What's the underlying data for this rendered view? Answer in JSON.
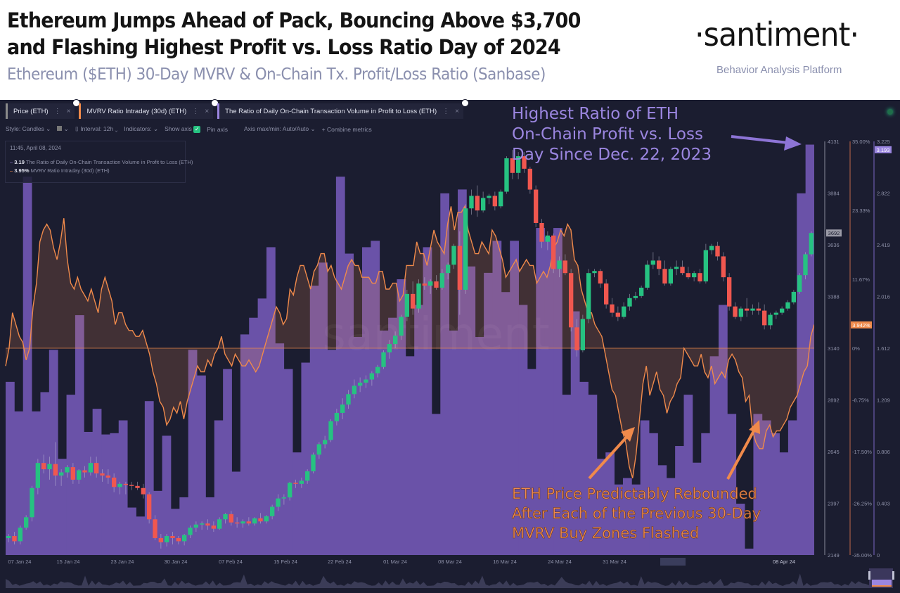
{
  "header": {
    "title_line1": "Ethereum Jumps Ahead of Pack, Bouncing Above $3,700",
    "title_line2": "and Flashing Highest Profit vs. Loss Ratio Day of 2024",
    "subtitle": "Ethereum ($ETH) 30-Day MVRV & On-Chain Tx. Profit/Loss Ratio (Sanbase)",
    "logo": "·santiment·",
    "logo_tagline": "Behavior Analysis Platform"
  },
  "tabs": [
    {
      "label": "Price (ETH)",
      "color": "#8a8a8a"
    },
    {
      "label": "MVRV Ratio Intraday (30d) (ETH)",
      "color": "#f08a4b"
    },
    {
      "label": "The Ratio of Daily On-Chain Transaction Volume in Profit to Loss (ETH)",
      "color": "#9b86e0"
    }
  ],
  "toolbar": {
    "style": "Style: Candles",
    "interval": "Interval: 12h",
    "indicators": "Indicators:",
    "show_axis": "Show axis",
    "pin_axis": "Pin axis",
    "axis_maxmin": "Axis max/min: Auto/Auto",
    "combine": "+ Combine metrics"
  },
  "legend": {
    "timestamp": "11:45, April 08, 2024",
    "rows": [
      {
        "value": "3.19",
        "label": "The Ratio of Daily On-Chain Transaction Volume in Profit to Loss (ETH)",
        "color": "#9b86e0"
      },
      {
        "value": "3.95%",
        "label": "MVRV Ratio Intraday (30d) (ETH)",
        "color": "#f08a4b"
      }
    ]
  },
  "annotations": {
    "top": [
      "Highest Ratio of ETH",
      "On-Chain Profit vs. Loss",
      "Day Since Dec. 22, 2023"
    ],
    "bottom": [
      "ETH Price Predictably Rebounded",
      "After Each of the Previous 30-Day",
      "MVRV Buy Zones Flashed"
    ]
  },
  "watermark": "santiment",
  "chart_data": {
    "type": "bar+line+candlestick",
    "title": "Ethereum ($ETH) 30-Day MVRV & On-Chain Tx. Profit/Loss Ratio",
    "x_ticks": [
      "07 Jan 24",
      "15 Jan 24",
      "23 Jan 24",
      "30 Jan 24",
      "07 Feb 24",
      "15 Feb 24",
      "22 Feb 24",
      "01 Mar 24",
      "08 Mar 24",
      "16 Mar 24",
      "24 Mar 24",
      "31 Mar 24",
      "08 Apr 24"
    ],
    "x_range": [
      "2024-01-06",
      "2024-04-08"
    ],
    "axes": {
      "price": {
        "label": "Price (ETH)",
        "ticks": [
          4131,
          3884,
          3636,
          3388,
          3140,
          2892,
          2645,
          2397,
          2149
        ],
        "range": [
          2149,
          4131
        ],
        "current_label": "3692"
      },
      "mvrv": {
        "label": "MVRV Ratio Intraday (30d)",
        "ticks": [
          "35.00%",
          "23.33%",
          "11.67%",
          "0%",
          "-8.75%",
          "-17.50%",
          "-26.25%",
          "-35.00%"
        ],
        "range": [
          -35,
          35
        ],
        "current_label": "3.942%"
      },
      "ratio": {
        "label": "Profit/Loss Ratio",
        "ticks": [
          "3.225",
          "2.822",
          "2.419",
          "2.016",
          "1.612",
          "1.209",
          "0.806",
          "0.403",
          "0"
        ],
        "range": [
          0,
          3.225
        ],
        "current_label": "3.193"
      }
    },
    "ratio_series": {
      "name": "The Ratio of Daily On-Chain Transaction Volume in Profit to Loss (ETH)",
      "color": "#6a52a8",
      "values": [
        1.35,
        1.12,
        2.95,
        1.12,
        1.27,
        1.6,
        0.75,
        1.25,
        1.87,
        0.96,
        1.14,
        0.94,
        0.95,
        1.05,
        0.37,
        0.3,
        1.2,
        0.5,
        0.93,
        0.36,
        0.45,
        1.6,
        1.4,
        0.45,
        1.05,
        1.45,
        0.65,
        1.72,
        1.85,
        2.0,
        2.4,
        1.65,
        1.45,
        0.8,
        1.5,
        2.1,
        2.28,
        1.6,
        2.95,
        2.35,
        1.7,
        2.4,
        2.45,
        1.75,
        1.85,
        2.15,
        1.55,
        1.95,
        2.4,
        1.1,
        2.82,
        1.75,
        2.85,
        2.25,
        1.7,
        2.2,
        2.45,
        2.05,
        2.45,
        1.95,
        1.45,
        2.55,
        2.48,
        2.55,
        1.25,
        1.9,
        1.35,
        1.25,
        0.75,
        0.8,
        0.55,
        0.6,
        0.55,
        1.05,
        0.95,
        0.7,
        0.6,
        0.85,
        1.25,
        0.72,
        0.95,
        1.55,
        1.95,
        1.1,
        0.4,
        0.05,
        1.1,
        1.05,
        0.95,
        0.8,
        1.05,
        2.82,
        3.2
      ]
    },
    "price_series": {
      "name": "Price (ETH)",
      "interval": "1d (approx. of 12h candles)",
      "up_color": "#26c281",
      "down_color": "#f0574f",
      "ohlc": [
        [
          2230,
          2250,
          2210,
          2240
        ],
        [
          2240,
          2260,
          2200,
          2215
        ],
        [
          2215,
          2290,
          2200,
          2280
        ],
        [
          2280,
          2340,
          2270,
          2330
        ],
        [
          2330,
          2480,
          2310,
          2470
        ],
        [
          2470,
          2610,
          2440,
          2590
        ],
        [
          2590,
          2630,
          2540,
          2560
        ],
        [
          2560,
          2620,
          2510,
          2585
        ],
        [
          2585,
          2690,
          2480,
          2530
        ],
        [
          2530,
          2560,
          2480,
          2545
        ],
        [
          2545,
          2580,
          2520,
          2570
        ],
        [
          2570,
          2590,
          2490,
          2510
        ],
        [
          2510,
          2560,
          2490,
          2555
        ],
        [
          2555,
          2575,
          2520,
          2545
        ],
        [
          2545,
          2620,
          2530,
          2590
        ],
        [
          2590,
          2620,
          2520,
          2540
        ],
        [
          2540,
          2560,
          2500,
          2530
        ],
        [
          2530,
          2560,
          2490,
          2520
        ],
        [
          2520,
          2540,
          2450,
          2475
        ],
        [
          2475,
          2500,
          2440,
          2490
        ],
        [
          2490,
          2500,
          2440,
          2485
        ],
        [
          2485,
          2500,
          2460,
          2480
        ],
        [
          2480,
          2500,
          2460,
          2470
        ],
        [
          2470,
          2490,
          2420,
          2440
        ],
        [
          2440,
          2450,
          2300,
          2320
        ],
        [
          2320,
          2340,
          2220,
          2230
        ],
        [
          2230,
          2250,
          2180,
          2210
        ],
        [
          2210,
          2250,
          2190,
          2240
        ],
        [
          2240,
          2260,
          2200,
          2230
        ],
        [
          2230,
          2240,
          2200,
          2215
        ],
        [
          2215,
          2250,
          2195,
          2245
        ],
        [
          2245,
          2290,
          2230,
          2280
        ],
        [
          2280,
          2310,
          2260,
          2295
        ],
        [
          2295,
          2310,
          2270,
          2300
        ],
        [
          2300,
          2320,
          2270,
          2290
        ],
        [
          2290,
          2310,
          2260,
          2275
        ],
        [
          2275,
          2330,
          2270,
          2320
        ],
        [
          2320,
          2350,
          2300,
          2345
        ],
        [
          2345,
          2360,
          2290,
          2305
        ],
        [
          2305,
          2330,
          2280,
          2300
        ],
        [
          2300,
          2320,
          2280,
          2310
        ],
        [
          2310,
          2330,
          2290,
          2300
        ],
        [
          2300,
          2330,
          2290,
          2325
        ],
        [
          2325,
          2350,
          2300,
          2310
        ],
        [
          2310,
          2340,
          2300,
          2335
        ],
        [
          2335,
          2390,
          2320,
          2380
        ],
        [
          2380,
          2440,
          2360,
          2420
        ],
        [
          2420,
          2440,
          2390,
          2425
        ],
        [
          2425,
          2500,
          2410,
          2495
        ],
        [
          2495,
          2510,
          2470,
          2490
        ],
        [
          2490,
          2520,
          2470,
          2505
        ],
        [
          2505,
          2560,
          2490,
          2550
        ],
        [
          2550,
          2640,
          2540,
          2630
        ],
        [
          2630,
          2690,
          2610,
          2680
        ],
        [
          2680,
          2720,
          2660,
          2700
        ],
        [
          2700,
          2800,
          2690,
          2790
        ],
        [
          2790,
          2850,
          2770,
          2830
        ],
        [
          2830,
          2900,
          2800,
          2870
        ],
        [
          2870,
          2940,
          2850,
          2920
        ],
        [
          2920,
          2990,
          2900,
          2960
        ],
        [
          2960,
          3000,
          2930,
          2975
        ],
        [
          2975,
          3010,
          2950,
          2990
        ],
        [
          2990,
          3030,
          2960,
          3020
        ],
        [
          3020,
          3060,
          3000,
          3050
        ],
        [
          3050,
          3130,
          3040,
          3120
        ],
        [
          3120,
          3180,
          3090,
          3160
        ],
        [
          3160,
          3220,
          3140,
          3200
        ],
        [
          3200,
          3300,
          3180,
          3290
        ],
        [
          3290,
          3420,
          3270,
          3400
        ],
        [
          3400,
          3460,
          3300,
          3330
        ],
        [
          3330,
          3470,
          3310,
          3450
        ],
        [
          3450,
          3480,
          3420,
          3440
        ],
        [
          3440,
          3470,
          3400,
          3460
        ],
        [
          3460,
          3490,
          3420,
          3430
        ],
        [
          3430,
          3520,
          3420,
          3500
        ],
        [
          3500,
          3550,
          3470,
          3540
        ],
        [
          3540,
          3640,
          3520,
          3630
        ],
        [
          3630,
          3700,
          3300,
          3420
        ],
        [
          3420,
          3830,
          3400,
          3810
        ],
        [
          3810,
          3900,
          3780,
          3870
        ],
        [
          3870,
          3920,
          3770,
          3800
        ],
        [
          3800,
          3890,
          3790,
          3860
        ],
        [
          3860,
          3880,
          3830,
          3870
        ],
        [
          3870,
          3890,
          3800,
          3820
        ],
        [
          3820,
          3900,
          3810,
          3890
        ],
        [
          3890,
          4060,
          3880,
          4050
        ],
        [
          4050,
          4090,
          3950,
          3980
        ],
        [
          3980,
          4080,
          3950,
          4060
        ],
        [
          4060,
          4080,
          3980,
          4000
        ],
        [
          4000,
          4010,
          3880,
          3900
        ],
        [
          3900,
          3920,
          3720,
          3740
        ],
        [
          3740,
          3760,
          3620,
          3650
        ],
        [
          3650,
          3700,
          3610,
          3680
        ],
        [
          3680,
          3690,
          3500,
          3520
        ],
        [
          3520,
          3580,
          3480,
          3560
        ],
        [
          3560,
          3590,
          3490,
          3500
        ],
        [
          3500,
          3520,
          3220,
          3240
        ],
        [
          3240,
          3280,
          3100,
          3130
        ],
        [
          3130,
          3300,
          3120,
          3280
        ],
        [
          3280,
          3520,
          3260,
          3500
        ],
        [
          3500,
          3520,
          3480,
          3510
        ],
        [
          3510,
          3520,
          3430,
          3450
        ],
        [
          3450,
          3470,
          3330,
          3350
        ],
        [
          3350,
          3380,
          3290,
          3310
        ],
        [
          3310,
          3340,
          3270,
          3290
        ],
        [
          3290,
          3360,
          3280,
          3340
        ],
        [
          3340,
          3400,
          3320,
          3380
        ],
        [
          3380,
          3410,
          3370,
          3390
        ],
        [
          3390,
          3440,
          3380,
          3430
        ],
        [
          3430,
          3560,
          3420,
          3540
        ],
        [
          3540,
          3600,
          3520,
          3560
        ],
        [
          3560,
          3580,
          3490,
          3520
        ],
        [
          3520,
          3560,
          3440,
          3450
        ],
        [
          3450,
          3530,
          3440,
          3520
        ],
        [
          3520,
          3560,
          3490,
          3530
        ],
        [
          3530,
          3560,
          3490,
          3500
        ],
        [
          3500,
          3530,
          3470,
          3480
        ],
        [
          3480,
          3510,
          3460,
          3500
        ],
        [
          3500,
          3520,
          3450,
          3460
        ],
        [
          3460,
          3640,
          3450,
          3610
        ],
        [
          3610,
          3640,
          3590,
          3630
        ],
        [
          3630,
          3650,
          3560,
          3580
        ],
        [
          3580,
          3600,
          3460,
          3480
        ],
        [
          3480,
          3500,
          3320,
          3340
        ],
        [
          3340,
          3360,
          3280,
          3290
        ],
        [
          3290,
          3340,
          3270,
          3330
        ],
        [
          3330,
          3380,
          3290,
          3320
        ],
        [
          3320,
          3350,
          3300,
          3330
        ],
        [
          3330,
          3360,
          3300,
          3320
        ],
        [
          3320,
          3350,
          3230,
          3250
        ],
        [
          3250,
          3310,
          3230,
          3300
        ],
        [
          3300,
          3320,
          3280,
          3310
        ],
        [
          3310,
          3340,
          3300,
          3330
        ],
        [
          3330,
          3370,
          3320,
          3360
        ],
        [
          3360,
          3420,
          3350,
          3410
        ],
        [
          3410,
          3500,
          3400,
          3490
        ],
        [
          3490,
          3600,
          3470,
          3590
        ],
        [
          3590,
          3700,
          3580,
          3692
        ]
      ]
    },
    "mvrv_series": {
      "name": "MVRV Ratio Intraday (30d) (ETH)",
      "unit": "%",
      "color": "#f08a4b",
      "values": [
        -3,
        0,
        6,
        4,
        2,
        1,
        -2,
        0,
        7,
        11,
        18,
        20,
        21,
        20,
        17,
        15,
        18,
        22,
        15,
        11,
        10,
        12,
        10,
        9,
        8,
        10,
        8,
        6,
        10,
        12,
        10,
        8,
        4,
        6,
        6,
        4,
        3,
        3,
        2,
        2,
        3,
        1,
        -1,
        -4,
        -6,
        -9,
        -10,
        -13,
        -12,
        -10,
        -11,
        -9,
        -12,
        -9,
        -7,
        -5,
        -3,
        -4,
        -4,
        -2,
        -3,
        -1,
        0,
        2,
        -1,
        -2,
        -3,
        -1,
        -2,
        -3,
        -3,
        -2,
        -3,
        -4,
        -3,
        -1,
        1,
        3,
        5,
        7,
        6,
        4,
        5,
        10,
        9,
        12,
        14,
        14,
        12,
        10,
        13,
        14,
        16,
        16,
        13,
        14,
        12,
        11,
        10,
        12,
        14,
        15,
        14,
        14,
        12,
        12,
        12,
        11,
        11,
        13,
        13,
        10,
        10,
        11,
        11,
        8,
        9,
        14,
        14,
        14,
        18,
        16,
        16,
        14,
        17,
        20,
        18,
        17,
        16,
        21,
        24,
        20,
        23,
        23,
        24,
        20,
        18,
        16,
        16,
        18,
        17,
        16,
        20,
        19,
        17,
        15,
        12,
        13,
        14,
        15,
        13,
        14,
        15,
        14,
        14,
        11,
        12,
        13,
        12,
        14,
        17,
        18,
        20,
        19,
        21,
        20,
        15,
        14,
        10,
        8,
        6,
        6,
        4,
        3,
        2,
        -1,
        -4,
        -7,
        -8,
        -11,
        -14,
        -16,
        -20,
        -22,
        -18,
        -12,
        -6,
        -3,
        -8,
        -6,
        -4,
        -7,
        -8,
        -11,
        -9,
        -8,
        -6,
        -5,
        0,
        -1,
        -2,
        -3,
        -3,
        -1,
        -4,
        -5,
        -3,
        -6,
        -5,
        -4,
        -5,
        -2,
        -1,
        -2,
        -4,
        -5,
        -9,
        -8,
        -14,
        -16,
        -17,
        -17,
        -14,
        -13,
        -15,
        -14,
        -14,
        -13,
        -12,
        -10,
        -9,
        -8,
        -6,
        -4,
        -3,
        2,
        4
      ]
    }
  }
}
